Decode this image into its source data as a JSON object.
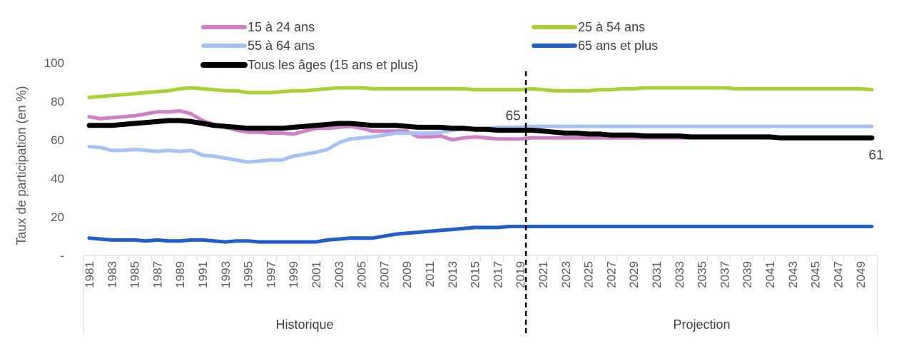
{
  "chart_data": {
    "type": "line",
    "ylabel": "Taux de participation (en %)",
    "ylim": [
      0,
      100
    ],
    "yticks": [
      {
        "value": 0,
        "label": "-"
      },
      {
        "value": 20,
        "label": "20"
      },
      {
        "value": 40,
        "label": "40"
      },
      {
        "value": 60,
        "label": "60"
      },
      {
        "value": 80,
        "label": "80"
      },
      {
        "value": 100,
        "label": "100"
      }
    ],
    "x_start": 1981,
    "x_end": 2050,
    "x_tick_labels": [
      "1981",
      "1983",
      "1985",
      "1987",
      "1989",
      "1991",
      "1993",
      "1995",
      "1997",
      "1999",
      "2001",
      "2003",
      "2005",
      "2007",
      "2009",
      "2011",
      "2013",
      "2015",
      "2017",
      "2019",
      "2021",
      "2023",
      "2025",
      "2027",
      "2029",
      "2031",
      "2033",
      "2035",
      "2037",
      "2039",
      "2041",
      "2043",
      "2045",
      "2047",
      "2049"
    ],
    "groups": [
      {
        "label": "Historique",
        "from": 1981,
        "to": 2019
      },
      {
        "label": "Projection",
        "from": 2020,
        "to": 2050
      }
    ],
    "divider_year": 2019.5,
    "annotations": [
      {
        "year": 2019,
        "value": 65,
        "text": "65"
      },
      {
        "year": 2050,
        "value": 61,
        "text": "61"
      }
    ],
    "series": [
      {
        "name": "15 à 24 ans",
        "color": "#D17FC8",
        "width": 5,
        "values": [
          72,
          71,
          71.5,
          72,
          72.5,
          73.5,
          74.5,
          74.5,
          75,
          73.5,
          70,
          68,
          66.5,
          65,
          64,
          64,
          63.5,
          63.5,
          63,
          64.5,
          66,
          66,
          66.5,
          67,
          66,
          64.5,
          64.5,
          64.5,
          64.5,
          61.5,
          61.5,
          62,
          60,
          61,
          61.5,
          61,
          60.5,
          60.5,
          60.5,
          61,
          61,
          61,
          61,
          61,
          61,
          61,
          61,
          61,
          61,
          61,
          61,
          61,
          61,
          61,
          61,
          61,
          61,
          61,
          61,
          61,
          61,
          61,
          61,
          61,
          61,
          61,
          61,
          61,
          61,
          61
        ]
      },
      {
        "name": "25 à 54 ans",
        "color": "#A9D134",
        "width": 5,
        "values": [
          82,
          82.5,
          83,
          83.5,
          84,
          84.5,
          85,
          85.5,
          86.5,
          87,
          86.5,
          86,
          85.5,
          85.5,
          84.5,
          84.5,
          84.5,
          85,
          85.5,
          85.5,
          86,
          86.5,
          87,
          87,
          87,
          86.5,
          86.5,
          86.5,
          86.5,
          86.5,
          86.5,
          86.5,
          86.5,
          86.5,
          86,
          86,
          86,
          86,
          86,
          86.5,
          86,
          85.5,
          85.5,
          85.5,
          85.5,
          86,
          86,
          86.5,
          86.5,
          87,
          87,
          87,
          87,
          87,
          87,
          87,
          87,
          86.5,
          86.5,
          86.5,
          86.5,
          86.5,
          86.5,
          86.5,
          86.5,
          86.5,
          86.5,
          86.5,
          86.5,
          86
        ]
      },
      {
        "name": "55 à 64 ans",
        "color": "#A4C2F4",
        "width": 5,
        "values": [
          56.5,
          56,
          54.5,
          54.5,
          55,
          54.5,
          54,
          54.5,
          54,
          54.5,
          52,
          51.5,
          50.5,
          49.5,
          48.5,
          49,
          49.5,
          49.5,
          51.5,
          52.5,
          53.5,
          55,
          58.5,
          60.5,
          61,
          61.5,
          62.5,
          63.5,
          63.5,
          63.5,
          63.5,
          64,
          65,
          65.5,
          65.5,
          66,
          66.5,
          66.5,
          66.5,
          67,
          67,
          67,
          67,
          67,
          67,
          67,
          67,
          67,
          67,
          67,
          67,
          67,
          67,
          67,
          67,
          67,
          67,
          67,
          67,
          67,
          67,
          67,
          67,
          67,
          67,
          67,
          67,
          67,
          67,
          67
        ]
      },
      {
        "name": "65 ans et plus",
        "color": "#1F5FCC",
        "width": 5,
        "values": [
          9,
          8.5,
          8,
          8,
          8,
          7.5,
          8,
          7.5,
          7.5,
          8,
          8,
          7.5,
          7,
          7.5,
          7.5,
          7,
          7,
          7,
          7,
          7,
          7,
          8,
          8.5,
          9,
          9,
          9,
          10,
          11,
          11.5,
          12,
          12.5,
          13,
          13.5,
          14,
          14.5,
          14.5,
          14.5,
          15,
          15,
          15,
          15,
          15,
          15,
          15,
          15,
          15,
          15,
          15,
          15,
          15,
          15,
          15,
          15,
          15,
          15,
          15,
          15,
          15,
          15,
          15,
          15,
          15,
          15,
          15,
          15,
          15,
          15,
          15,
          15,
          15
        ]
      },
      {
        "name": "Tous les âges (15 ans et plus)",
        "color": "#000000",
        "width": 7,
        "values": [
          67.5,
          67.5,
          67.5,
          68,
          68.5,
          69,
          69.5,
          70,
          70,
          69.5,
          68.5,
          67.5,
          67,
          66.5,
          66,
          66,
          66,
          66,
          66.5,
          67,
          67.5,
          68,
          68.5,
          68.5,
          68,
          67.5,
          67.5,
          67.5,
          67,
          66.5,
          66.5,
          66.5,
          66,
          66,
          65.5,
          65.5,
          65,
          65,
          65,
          65,
          64.5,
          64,
          63.5,
          63.5,
          63,
          63,
          62.5,
          62.5,
          62.5,
          62,
          62,
          62,
          62,
          61.5,
          61.5,
          61.5,
          61.5,
          61.5,
          61.5,
          61.5,
          61.5,
          61,
          61,
          61,
          61,
          61,
          61,
          61,
          61,
          61
        ]
      }
    ]
  }
}
